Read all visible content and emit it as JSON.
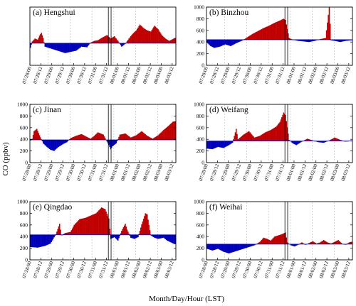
{
  "y_axis_label": "CO (ppbv)",
  "x_axis_label": "Month/Day/Hour (LST)",
  "colors": {
    "above": "#c00000",
    "below": "#0000bb",
    "frame": "#000000",
    "guide": "#bbbbbb"
  },
  "chart_data": [
    {
      "id": "a",
      "title": "(a) Hengshui",
      "type": "bar",
      "ylim": [
        0,
        1000
      ],
      "yticks": [],
      "baseline": 380,
      "ticks": [
        "07/28/00",
        "07/28/12",
        "07/29/00",
        "07/29/12",
        "07/30/00",
        "07/30/12",
        "07/31/00",
        "07/31/12",
        "08/01/00",
        "08/01/12",
        "08/02/00",
        "08/02/12",
        "08/03/00",
        "08/03/12"
      ],
      "profile": [
        [
          0,
          300
        ],
        [
          2,
          410
        ],
        [
          5,
          460
        ],
        [
          8,
          440
        ],
        [
          10,
          510
        ],
        [
          12,
          560
        ],
        [
          14,
          470
        ],
        [
          16,
          320
        ],
        [
          20,
          300
        ],
        [
          26,
          270
        ],
        [
          32,
          240
        ],
        [
          38,
          210
        ],
        [
          44,
          230
        ],
        [
          50,
          250
        ],
        [
          56,
          320
        ],
        [
          62,
          310
        ],
        [
          66,
          390
        ],
        [
          70,
          420
        ],
        [
          74,
          430
        ],
        [
          78,
          470
        ],
        [
          84,
          520
        ],
        [
          88,
          460
        ],
        [
          92,
          500
        ],
        [
          96,
          420
        ],
        [
          100,
          320
        ],
        [
          104,
          370
        ],
        [
          108,
          460
        ],
        [
          112,
          540
        ],
        [
          116,
          600
        ],
        [
          120,
          700
        ],
        [
          124,
          640
        ],
        [
          128,
          600
        ],
        [
          132,
          580
        ],
        [
          136,
          680
        ],
        [
          140,
          620
        ],
        [
          144,
          520
        ],
        [
          148,
          460
        ],
        [
          152,
          420
        ],
        [
          156,
          450
        ],
        [
          158,
          470
        ]
      ]
    },
    {
      "id": "b",
      "title": "(b) Binzhou",
      "type": "bar",
      "ylim": [
        0,
        1000
      ],
      "yticks": [
        "0",
        "200",
        "400",
        "600",
        "800",
        "1000"
      ],
      "baseline": 440,
      "ticks": [
        "07/28/00",
        "07/28/12",
        "07/29/00",
        "07/29/12",
        "07/30/00",
        "07/30/12",
        "07/31/00",
        "07/31/12",
        "08/01/00",
        "08/01/12",
        "08/02/00",
        "08/02/12",
        "08/03/00",
        "08/03/12"
      ],
      "profile": [
        [
          0,
          390
        ],
        [
          4,
          330
        ],
        [
          8,
          300
        ],
        [
          14,
          320
        ],
        [
          20,
          360
        ],
        [
          26,
          330
        ],
        [
          32,
          380
        ],
        [
          38,
          420
        ],
        [
          44,
          480
        ],
        [
          50,
          540
        ],
        [
          56,
          590
        ],
        [
          62,
          640
        ],
        [
          68,
          680
        ],
        [
          74,
          730
        ],
        [
          80,
          770
        ],
        [
          84,
          800
        ],
        [
          86,
          780
        ],
        [
          90,
          470
        ],
        [
          94,
          440
        ],
        [
          100,
          420
        ],
        [
          106,
          410
        ],
        [
          112,
          400
        ],
        [
          118,
          420
        ],
        [
          124,
          450
        ],
        [
          130,
          470
        ],
        [
          134,
          1000
        ],
        [
          136,
          430
        ],
        [
          140,
          420
        ],
        [
          146,
          400
        ],
        [
          152,
          420
        ],
        [
          158,
          430
        ]
      ]
    },
    {
      "id": "c",
      "title": "(c) Jinan",
      "type": "bar",
      "ylim": [
        0,
        1000
      ],
      "yticks": [
        "0",
        "200",
        "400",
        "600",
        "800",
        "1000"
      ],
      "baseline": 390,
      "ticks": [
        "07/28/00",
        "07/28/12",
        "07/29/00",
        "07/29/12",
        "07/30/00",
        "07/30/12",
        "07/31/00",
        "07/31/12",
        "08/01/00",
        "08/01/12",
        "08/02/00",
        "08/02/12",
        "08/03/00",
        "08/03/12"
      ],
      "profile": [
        [
          0,
          380
        ],
        [
          2,
          410
        ],
        [
          4,
          540
        ],
        [
          7,
          580
        ],
        [
          10,
          470
        ],
        [
          14,
          330
        ],
        [
          18,
          270
        ],
        [
          22,
          220
        ],
        [
          26,
          200
        ],
        [
          30,
          260
        ],
        [
          36,
          320
        ],
        [
          40,
          350
        ],
        [
          44,
          420
        ],
        [
          50,
          460
        ],
        [
          56,
          490
        ],
        [
          62,
          440
        ],
        [
          66,
          410
        ],
        [
          70,
          460
        ],
        [
          74,
          520
        ],
        [
          80,
          480
        ],
        [
          86,
          300
        ],
        [
          88,
          230
        ],
        [
          90,
          280
        ],
        [
          94,
          330
        ],
        [
          98,
          480
        ],
        [
          104,
          500
        ],
        [
          110,
          430
        ],
        [
          116,
          470
        ],
        [
          122,
          540
        ],
        [
          128,
          460
        ],
        [
          134,
          410
        ],
        [
          140,
          470
        ],
        [
          146,
          560
        ],
        [
          152,
          640
        ],
        [
          156,
          700
        ],
        [
          158,
          710
        ]
      ]
    },
    {
      "id": "d",
      "title": "(d) Weifang",
      "type": "bar",
      "ylim": [
        0,
        1000
      ],
      "yticks": [
        "0",
        "200",
        "400",
        "600",
        "800",
        "1000"
      ],
      "baseline": 370,
      "ticks": [
        "07/28/00",
        "07/28/12",
        "07/29/00",
        "07/29/12",
        "07/30/00",
        "07/30/12",
        "07/31/00",
        "07/31/12",
        "08/01/00",
        "08/01/12",
        "08/02/00",
        "08/02/12",
        "08/03/00",
        "08/03/12"
      ],
      "profile": [
        [
          0,
          240
        ],
        [
          6,
          230
        ],
        [
          12,
          270
        ],
        [
          18,
          250
        ],
        [
          24,
          300
        ],
        [
          28,
          340
        ],
        [
          32,
          580
        ],
        [
          34,
          400
        ],
        [
          40,
          480
        ],
        [
          46,
          540
        ],
        [
          52,
          430
        ],
        [
          58,
          460
        ],
        [
          64,
          520
        ],
        [
          70,
          560
        ],
        [
          76,
          620
        ],
        [
          80,
          700
        ],
        [
          84,
          860
        ],
        [
          86,
          820
        ],
        [
          90,
          390
        ],
        [
          94,
          330
        ],
        [
          98,
          300
        ],
        [
          104,
          360
        ],
        [
          110,
          410
        ],
        [
          116,
          380
        ],
        [
          122,
          350
        ],
        [
          128,
          340
        ],
        [
          134,
          380
        ],
        [
          140,
          430
        ],
        [
          146,
          390
        ],
        [
          152,
          360
        ],
        [
          158,
          380
        ]
      ]
    },
    {
      "id": "e",
      "title": "(e) Qingdao",
      "type": "bar",
      "ylim": [
        0,
        1000
      ],
      "yticks": [
        "0",
        "200",
        "400",
        "600",
        "800",
        "1000"
      ],
      "baseline": 430,
      "ticks": [
        "07/28/00",
        "07/28/12",
        "07/29/00",
        "07/29/12",
        "07/30/00",
        "07/30/12",
        "07/31/00",
        "07/31/12",
        "08/01/00",
        "08/01/12",
        "08/02/00",
        "08/02/12",
        "08/03/00",
        "08/03/12"
      ],
      "profile": [
        [
          0,
          220
        ],
        [
          8,
          210
        ],
        [
          16,
          240
        ],
        [
          22,
          280
        ],
        [
          28,
          440
        ],
        [
          32,
          620
        ],
        [
          34,
          420
        ],
        [
          38,
          460
        ],
        [
          44,
          480
        ],
        [
          48,
          600
        ],
        [
          54,
          700
        ],
        [
          60,
          720
        ],
        [
          66,
          760
        ],
        [
          72,
          800
        ],
        [
          78,
          900
        ],
        [
          82,
          870
        ],
        [
          86,
          710
        ],
        [
          88,
          360
        ],
        [
          92,
          390
        ],
        [
          96,
          330
        ],
        [
          100,
          500
        ],
        [
          104,
          620
        ],
        [
          106,
          520
        ],
        [
          110,
          380
        ],
        [
          114,
          360
        ],
        [
          118,
          390
        ],
        [
          122,
          610
        ],
        [
          126,
          800
        ],
        [
          128,
          780
        ],
        [
          132,
          420
        ],
        [
          136,
          380
        ],
        [
          140,
          360
        ],
        [
          146,
          380
        ],
        [
          150,
          330
        ],
        [
          154,
          300
        ],
        [
          158,
          270
        ]
      ]
    },
    {
      "id": "f",
      "title": "(f) Weihai",
      "type": "bar",
      "ylim": [
        0,
        1000
      ],
      "yticks": [
        "0",
        "200",
        "400",
        "600",
        "800",
        "1000"
      ],
      "baseline": 270,
      "ticks": [
        "07/28/00",
        "07/28/12",
        "07/29/00",
        "07/29/12",
        "07/30/00",
        "07/30/12",
        "07/31/00",
        "07/31/12",
        "08/01/00",
        "08/01/12",
        "08/02/00",
        "08/02/12",
        "08/03/00",
        "08/03/12"
      ],
      "profile": [
        [
          0,
          190
        ],
        [
          6,
          160
        ],
        [
          12,
          190
        ],
        [
          18,
          140
        ],
        [
          24,
          110
        ],
        [
          28,
          130
        ],
        [
          34,
          160
        ],
        [
          40,
          190
        ],
        [
          46,
          220
        ],
        [
          52,
          250
        ],
        [
          58,
          310
        ],
        [
          62,
          380
        ],
        [
          66,
          360
        ],
        [
          70,
          330
        ],
        [
          74,
          400
        ],
        [
          78,
          420
        ],
        [
          82,
          440
        ],
        [
          86,
          470
        ],
        [
          88,
          300
        ],
        [
          92,
          250
        ],
        [
          96,
          230
        ],
        [
          100,
          260
        ],
        [
          104,
          300
        ],
        [
          108,
          260
        ],
        [
          112,
          290
        ],
        [
          116,
          320
        ],
        [
          120,
          280
        ],
        [
          124,
          300
        ],
        [
          128,
          340
        ],
        [
          132,
          300
        ],
        [
          136,
          280
        ],
        [
          140,
          310
        ],
        [
          144,
          340
        ],
        [
          148,
          280
        ],
        [
          152,
          260
        ],
        [
          156,
          300
        ],
        [
          158,
          310
        ]
      ]
    }
  ]
}
